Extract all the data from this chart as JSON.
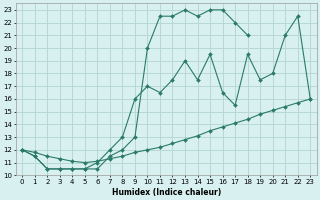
{
  "xlabel": "Humidex (Indice chaleur)",
  "bg_color": "#d8f0f0",
  "grid_color": "#b8d8d8",
  "line_color": "#2a7a6a",
  "xlim": [
    -0.5,
    23.5
  ],
  "ylim": [
    10,
    23.5
  ],
  "xticks": [
    0,
    1,
    2,
    3,
    4,
    5,
    6,
    7,
    8,
    9,
    10,
    11,
    12,
    13,
    14,
    15,
    16,
    17,
    18,
    19,
    20,
    21,
    22,
    23
  ],
  "yticks": [
    10,
    11,
    12,
    13,
    14,
    15,
    16,
    17,
    18,
    19,
    20,
    21,
    22,
    23
  ],
  "line1_x": [
    0,
    1,
    2,
    3,
    4,
    5,
    6,
    7,
    8,
    9,
    10,
    11,
    12,
    13,
    14,
    15,
    16,
    17,
    18,
    19,
    20,
    21,
    22,
    23
  ],
  "line1_y": [
    12,
    11.5,
    10.5,
    10.5,
    10.5,
    10.5,
    11,
    12,
    13,
    16,
    17,
    16.5,
    17.5,
    19,
    17.5,
    19.5,
    16.5,
    15.5,
    19.5,
    17.5,
    18,
    21,
    22.5,
    16
  ],
  "line2_x": [
    0,
    1,
    2,
    3,
    4,
    5,
    6,
    7,
    8,
    9,
    10,
    11,
    12,
    13,
    14,
    15,
    16,
    17,
    18
  ],
  "line2_y": [
    12,
    11.5,
    10.5,
    10.5,
    10.5,
    10.5,
    10.5,
    11.5,
    12,
    13,
    20,
    22.5,
    22.5,
    23,
    22.5,
    23,
    23,
    22,
    21
  ],
  "line3_x": [
    0,
    1,
    2,
    3,
    4,
    5,
    6,
    7,
    8,
    9,
    10,
    11,
    12,
    13,
    14,
    15,
    16,
    17,
    18,
    19,
    20,
    21,
    22,
    23
  ],
  "line3_y": [
    12,
    11.8,
    11.5,
    11.3,
    11.1,
    11.0,
    11.1,
    11.3,
    11.5,
    11.8,
    12.0,
    12.2,
    12.5,
    12.8,
    13.1,
    13.5,
    13.8,
    14.1,
    14.4,
    14.8,
    15.1,
    15.4,
    15.7,
    16.0
  ]
}
